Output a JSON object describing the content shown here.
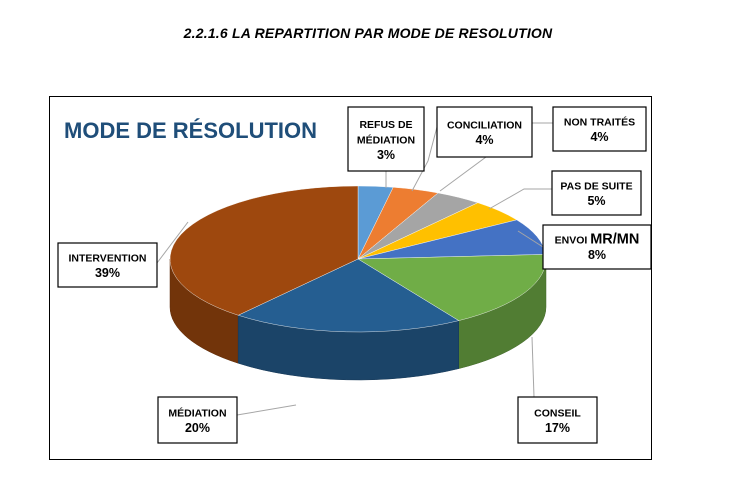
{
  "heading": "2.2.1.6 LA REPARTITION PAR MODE DE RESOLUTION",
  "chart_data": {
    "type": "pie",
    "title": "MODE DE RÉSOLUTION",
    "title_color": "#1F4E79",
    "slices": [
      {
        "label": "REFUS DE MÉDIATION",
        "label_lines": [
          "REFUS DE",
          "MÉDIATION"
        ],
        "value": 3,
        "value_text": "3%",
        "color": "#5B9BD5"
      },
      {
        "label": "CONCILIATION",
        "label_lines": [
          "CONCILIATION"
        ],
        "value": 4,
        "value_text": "4%",
        "color": "#ED7D31"
      },
      {
        "label": "NON TRAITÉS",
        "label_lines": [
          "NON TRAITÉS"
        ],
        "value": 4,
        "value_text": "4%",
        "color": "#A5A5A5"
      },
      {
        "label": "PAS DE SUITE",
        "label_lines": [
          "PAS DE SUITE"
        ],
        "value": 5,
        "value_text": "5%",
        "color": "#FFC000"
      },
      {
        "label": "ENVOI MR/MN",
        "label_lines": [
          "ENVOI MR/MN"
        ],
        "value": 8,
        "value_text": "8%",
        "color": "#4472C4"
      },
      {
        "label": "CONSEIL",
        "label_lines": [
          "CONSEIL"
        ],
        "value": 17,
        "value_text": "17%",
        "color": "#70AD47"
      },
      {
        "label": "MÉDIATION",
        "label_lines": [
          "MÉDIATION"
        ],
        "value": 20,
        "value_text": "20%",
        "color": "#255E91"
      },
      {
        "label": "INTERVENTION",
        "label_lines": [
          "INTERVENTION"
        ],
        "value": 39,
        "value_text": "39%",
        "color": "#9E480E"
      }
    ]
  }
}
